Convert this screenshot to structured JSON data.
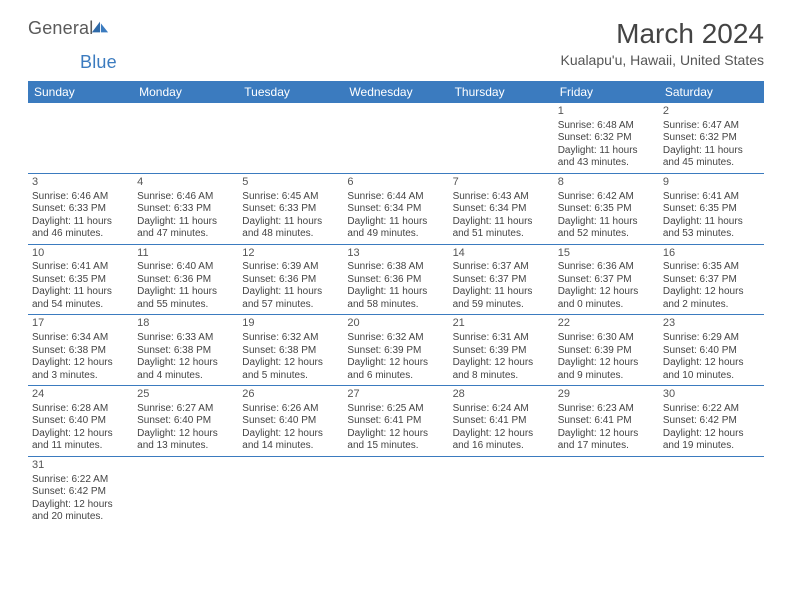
{
  "logo": {
    "part1": "General",
    "part2": "Blue"
  },
  "title": "March 2024",
  "subtitle": "Kualapu'u, Hawaii, United States",
  "colors": {
    "header_bg": "#3b7bbf",
    "header_text": "#ffffff",
    "row_border": "#3b7bbf",
    "body_text": "#444444",
    "title_text": "#444444",
    "background": "#ffffff"
  },
  "dayLabels": [
    "Sunday",
    "Monday",
    "Tuesday",
    "Wednesday",
    "Thursday",
    "Friday",
    "Saturday"
  ],
  "weeks": [
    [
      null,
      null,
      null,
      null,
      null,
      {
        "n": "1",
        "sr": "Sunrise: 6:48 AM",
        "ss": "Sunset: 6:32 PM",
        "d1": "Daylight: 11 hours",
        "d2": "and 43 minutes."
      },
      {
        "n": "2",
        "sr": "Sunrise: 6:47 AM",
        "ss": "Sunset: 6:32 PM",
        "d1": "Daylight: 11 hours",
        "d2": "and 45 minutes."
      }
    ],
    [
      {
        "n": "3",
        "sr": "Sunrise: 6:46 AM",
        "ss": "Sunset: 6:33 PM",
        "d1": "Daylight: 11 hours",
        "d2": "and 46 minutes."
      },
      {
        "n": "4",
        "sr": "Sunrise: 6:46 AM",
        "ss": "Sunset: 6:33 PM",
        "d1": "Daylight: 11 hours",
        "d2": "and 47 minutes."
      },
      {
        "n": "5",
        "sr": "Sunrise: 6:45 AM",
        "ss": "Sunset: 6:33 PM",
        "d1": "Daylight: 11 hours",
        "d2": "and 48 minutes."
      },
      {
        "n": "6",
        "sr": "Sunrise: 6:44 AM",
        "ss": "Sunset: 6:34 PM",
        "d1": "Daylight: 11 hours",
        "d2": "and 49 minutes."
      },
      {
        "n": "7",
        "sr": "Sunrise: 6:43 AM",
        "ss": "Sunset: 6:34 PM",
        "d1": "Daylight: 11 hours",
        "d2": "and 51 minutes."
      },
      {
        "n": "8",
        "sr": "Sunrise: 6:42 AM",
        "ss": "Sunset: 6:35 PM",
        "d1": "Daylight: 11 hours",
        "d2": "and 52 minutes."
      },
      {
        "n": "9",
        "sr": "Sunrise: 6:41 AM",
        "ss": "Sunset: 6:35 PM",
        "d1": "Daylight: 11 hours",
        "d2": "and 53 minutes."
      }
    ],
    [
      {
        "n": "10",
        "sr": "Sunrise: 6:41 AM",
        "ss": "Sunset: 6:35 PM",
        "d1": "Daylight: 11 hours",
        "d2": "and 54 minutes."
      },
      {
        "n": "11",
        "sr": "Sunrise: 6:40 AM",
        "ss": "Sunset: 6:36 PM",
        "d1": "Daylight: 11 hours",
        "d2": "and 55 minutes."
      },
      {
        "n": "12",
        "sr": "Sunrise: 6:39 AM",
        "ss": "Sunset: 6:36 PM",
        "d1": "Daylight: 11 hours",
        "d2": "and 57 minutes."
      },
      {
        "n": "13",
        "sr": "Sunrise: 6:38 AM",
        "ss": "Sunset: 6:36 PM",
        "d1": "Daylight: 11 hours",
        "d2": "and 58 minutes."
      },
      {
        "n": "14",
        "sr": "Sunrise: 6:37 AM",
        "ss": "Sunset: 6:37 PM",
        "d1": "Daylight: 11 hours",
        "d2": "and 59 minutes."
      },
      {
        "n": "15",
        "sr": "Sunrise: 6:36 AM",
        "ss": "Sunset: 6:37 PM",
        "d1": "Daylight: 12 hours",
        "d2": "and 0 minutes."
      },
      {
        "n": "16",
        "sr": "Sunrise: 6:35 AM",
        "ss": "Sunset: 6:37 PM",
        "d1": "Daylight: 12 hours",
        "d2": "and 2 minutes."
      }
    ],
    [
      {
        "n": "17",
        "sr": "Sunrise: 6:34 AM",
        "ss": "Sunset: 6:38 PM",
        "d1": "Daylight: 12 hours",
        "d2": "and 3 minutes."
      },
      {
        "n": "18",
        "sr": "Sunrise: 6:33 AM",
        "ss": "Sunset: 6:38 PM",
        "d1": "Daylight: 12 hours",
        "d2": "and 4 minutes."
      },
      {
        "n": "19",
        "sr": "Sunrise: 6:32 AM",
        "ss": "Sunset: 6:38 PM",
        "d1": "Daylight: 12 hours",
        "d2": "and 5 minutes."
      },
      {
        "n": "20",
        "sr": "Sunrise: 6:32 AM",
        "ss": "Sunset: 6:39 PM",
        "d1": "Daylight: 12 hours",
        "d2": "and 6 minutes."
      },
      {
        "n": "21",
        "sr": "Sunrise: 6:31 AM",
        "ss": "Sunset: 6:39 PM",
        "d1": "Daylight: 12 hours",
        "d2": "and 8 minutes."
      },
      {
        "n": "22",
        "sr": "Sunrise: 6:30 AM",
        "ss": "Sunset: 6:39 PM",
        "d1": "Daylight: 12 hours",
        "d2": "and 9 minutes."
      },
      {
        "n": "23",
        "sr": "Sunrise: 6:29 AM",
        "ss": "Sunset: 6:40 PM",
        "d1": "Daylight: 12 hours",
        "d2": "and 10 minutes."
      }
    ],
    [
      {
        "n": "24",
        "sr": "Sunrise: 6:28 AM",
        "ss": "Sunset: 6:40 PM",
        "d1": "Daylight: 12 hours",
        "d2": "and 11 minutes."
      },
      {
        "n": "25",
        "sr": "Sunrise: 6:27 AM",
        "ss": "Sunset: 6:40 PM",
        "d1": "Daylight: 12 hours",
        "d2": "and 13 minutes."
      },
      {
        "n": "26",
        "sr": "Sunrise: 6:26 AM",
        "ss": "Sunset: 6:40 PM",
        "d1": "Daylight: 12 hours",
        "d2": "and 14 minutes."
      },
      {
        "n": "27",
        "sr": "Sunrise: 6:25 AM",
        "ss": "Sunset: 6:41 PM",
        "d1": "Daylight: 12 hours",
        "d2": "and 15 minutes."
      },
      {
        "n": "28",
        "sr": "Sunrise: 6:24 AM",
        "ss": "Sunset: 6:41 PM",
        "d1": "Daylight: 12 hours",
        "d2": "and 16 minutes."
      },
      {
        "n": "29",
        "sr": "Sunrise: 6:23 AM",
        "ss": "Sunset: 6:41 PM",
        "d1": "Daylight: 12 hours",
        "d2": "and 17 minutes."
      },
      {
        "n": "30",
        "sr": "Sunrise: 6:22 AM",
        "ss": "Sunset: 6:42 PM",
        "d1": "Daylight: 12 hours",
        "d2": "and 19 minutes."
      }
    ],
    [
      {
        "n": "31",
        "sr": "Sunrise: 6:22 AM",
        "ss": "Sunset: 6:42 PM",
        "d1": "Daylight: 12 hours",
        "d2": "and 20 minutes."
      },
      null,
      null,
      null,
      null,
      null,
      null
    ]
  ]
}
